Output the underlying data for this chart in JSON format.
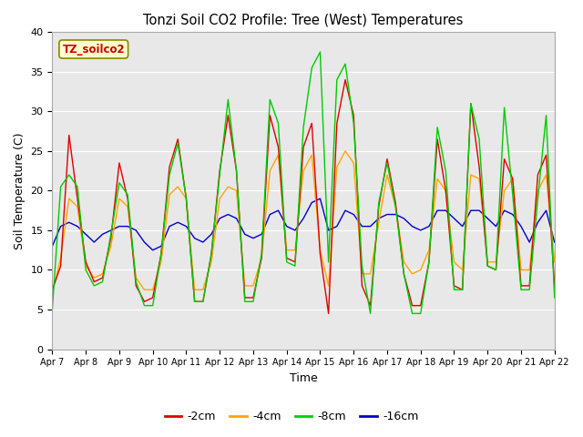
{
  "title": "Tonzi Soil CO2 Profile: Tree (West) Temperatures",
  "xlabel": "Time",
  "ylabel": "Soil Temperature (C)",
  "ylim": [
    0,
    40
  ],
  "xlim": [
    0,
    15
  ],
  "plot_bg_color": "#e8e8e8",
  "legend_label": "TZ_soilco2",
  "legend_bg": "#ffffcc",
  "legend_border": "#cc0000",
  "xtick_labels": [
    "Apr 7",
    "Apr 8",
    "Apr 9",
    "Apr 10",
    "Apr 11",
    "Apr 12",
    "Apr 13",
    "Apr 14",
    "Apr 15",
    "Apr 16",
    "Apr 17",
    "Apr 18",
    "Apr 19",
    "Apr 20",
    "Apr 21",
    "Apr 22"
  ],
  "ytick_labels": [
    0,
    5,
    10,
    15,
    20,
    25,
    30,
    35,
    40
  ],
  "series": {
    "-2cm": {
      "color": "#dd0000",
      "data_x": [
        0,
        0.25,
        0.5,
        0.75,
        1.0,
        1.25,
        1.5,
        1.75,
        2.0,
        2.25,
        2.5,
        2.75,
        3.0,
        3.25,
        3.5,
        3.75,
        4.0,
        4.25,
        4.5,
        4.75,
        5.0,
        5.25,
        5.5,
        5.75,
        6.0,
        6.25,
        6.5,
        6.75,
        7.0,
        7.25,
        7.5,
        7.75,
        8.0,
        8.25,
        8.5,
        8.75,
        9.0,
        9.25,
        9.5,
        9.75,
        10.0,
        10.25,
        10.5,
        10.75,
        11.0,
        11.25,
        11.5,
        11.75,
        12.0,
        12.25,
        12.5,
        12.75,
        13.0,
        13.25,
        13.5,
        13.75,
        14.0,
        14.25,
        14.5,
        14.75,
        15.0
      ],
      "data_y": [
        7.5,
        10.5,
        27.0,
        19.0,
        11.0,
        8.5,
        9.0,
        14.0,
        23.5,
        19.0,
        8.0,
        6.0,
        6.5,
        12.0,
        23.0,
        26.5,
        19.0,
        6.0,
        6.0,
        12.0,
        22.5,
        29.5,
        22.5,
        6.5,
        6.5,
        11.5,
        29.5,
        25.5,
        11.5,
        11.0,
        25.5,
        28.5,
        12.0,
        4.5,
        28.5,
        34.0,
        29.5,
        8.0,
        5.5,
        18.0,
        24.0,
        18.5,
        9.5,
        5.5,
        5.5,
        11.0,
        26.5,
        20.0,
        8.0,
        7.5,
        31.0,
        23.0,
        10.5,
        10.0,
        24.0,
        21.5,
        8.0,
        8.0,
        22.0,
        24.5,
        8.0
      ]
    },
    "-4cm": {
      "color": "#ffa500",
      "data_x": [
        0,
        0.25,
        0.5,
        0.75,
        1.0,
        1.25,
        1.5,
        1.75,
        2.0,
        2.25,
        2.5,
        2.75,
        3.0,
        3.25,
        3.5,
        3.75,
        4.0,
        4.25,
        4.5,
        4.75,
        5.0,
        5.25,
        5.5,
        5.75,
        6.0,
        6.25,
        6.5,
        6.75,
        7.0,
        7.25,
        7.5,
        7.75,
        8.0,
        8.25,
        8.5,
        8.75,
        9.0,
        9.25,
        9.5,
        9.75,
        10.0,
        10.25,
        10.5,
        10.75,
        11.0,
        11.25,
        11.5,
        11.75,
        12.0,
        12.25,
        12.5,
        12.75,
        13.0,
        13.25,
        13.5,
        13.75,
        14.0,
        14.25,
        14.5,
        14.75,
        15.0
      ],
      "data_y": [
        7.0,
        11.5,
        19.0,
        18.0,
        10.5,
        9.0,
        9.5,
        13.0,
        19.0,
        18.0,
        9.0,
        7.5,
        7.5,
        11.0,
        19.5,
        20.5,
        19.0,
        7.5,
        7.5,
        11.0,
        19.0,
        20.5,
        20.0,
        8.0,
        8.0,
        11.5,
        22.5,
        24.5,
        12.5,
        12.5,
        22.5,
        24.5,
        12.5,
        8.0,
        23.0,
        25.0,
        23.5,
        9.5,
        9.5,
        16.0,
        22.0,
        18.0,
        11.0,
        9.5,
        10.0,
        12.5,
        21.5,
        20.0,
        11.0,
        10.0,
        22.0,
        21.5,
        11.0,
        11.0,
        20.0,
        21.5,
        10.0,
        10.0,
        20.0,
        22.0,
        11.0
      ]
    },
    "-8cm": {
      "color": "#00cc00",
      "data_x": [
        0,
        0.25,
        0.5,
        0.75,
        1.0,
        1.25,
        1.5,
        1.75,
        2.0,
        2.25,
        2.5,
        2.75,
        3.0,
        3.25,
        3.5,
        3.75,
        4.0,
        4.25,
        4.5,
        4.75,
        5.0,
        5.25,
        5.5,
        5.75,
        6.0,
        6.25,
        6.5,
        6.75,
        7.0,
        7.25,
        7.5,
        7.75,
        8.0,
        8.25,
        8.5,
        8.75,
        9.0,
        9.25,
        9.5,
        9.75,
        10.0,
        10.25,
        10.5,
        10.75,
        11.0,
        11.25,
        11.5,
        11.75,
        12.0,
        12.25,
        12.5,
        12.75,
        13.0,
        13.25,
        13.5,
        13.75,
        14.0,
        14.25,
        14.5,
        14.75,
        15.0
      ],
      "data_y": [
        5.0,
        20.5,
        22.0,
        20.5,
        10.0,
        8.0,
        8.5,
        14.5,
        21.0,
        19.5,
        8.5,
        5.5,
        5.5,
        12.0,
        22.0,
        26.0,
        19.0,
        6.0,
        6.0,
        12.0,
        22.0,
        31.5,
        22.5,
        6.0,
        6.0,
        12.0,
        31.5,
        28.5,
        11.0,
        10.5,
        28.0,
        35.5,
        37.5,
        11.0,
        34.0,
        36.0,
        28.5,
        10.5,
        4.5,
        18.5,
        23.5,
        18.0,
        9.5,
        4.5,
        4.5,
        11.0,
        28.0,
        22.5,
        7.5,
        7.5,
        31.0,
        26.5,
        10.5,
        10.0,
        30.5,
        19.5,
        7.5,
        7.5,
        19.0,
        29.5,
        6.5
      ]
    },
    "-16cm": {
      "color": "#0000cc",
      "data_x": [
        0,
        0.25,
        0.5,
        0.75,
        1.0,
        1.25,
        1.5,
        1.75,
        2.0,
        2.25,
        2.5,
        2.75,
        3.0,
        3.25,
        3.5,
        3.75,
        4.0,
        4.25,
        4.5,
        4.75,
        5.0,
        5.25,
        5.5,
        5.75,
        6.0,
        6.25,
        6.5,
        6.75,
        7.0,
        7.25,
        7.5,
        7.75,
        8.0,
        8.25,
        8.5,
        8.75,
        9.0,
        9.25,
        9.5,
        9.75,
        10.0,
        10.25,
        10.5,
        10.75,
        11.0,
        11.25,
        11.5,
        11.75,
        12.0,
        12.25,
        12.5,
        12.75,
        13.0,
        13.25,
        13.5,
        13.75,
        14.0,
        14.25,
        14.5,
        14.75,
        15.0
      ],
      "data_y": [
        13.0,
        15.5,
        16.0,
        15.5,
        14.5,
        13.5,
        14.5,
        15.0,
        15.5,
        15.5,
        15.0,
        13.5,
        12.5,
        13.0,
        15.5,
        16.0,
        15.5,
        14.0,
        13.5,
        14.5,
        16.5,
        17.0,
        16.5,
        14.5,
        14.0,
        14.5,
        17.0,
        17.5,
        15.5,
        15.0,
        16.5,
        18.5,
        19.0,
        15.0,
        15.5,
        17.5,
        17.0,
        15.5,
        15.5,
        16.5,
        17.0,
        17.0,
        16.5,
        15.5,
        15.0,
        15.5,
        17.5,
        17.5,
        16.5,
        15.5,
        17.5,
        17.5,
        16.5,
        15.5,
        17.5,
        17.0,
        15.5,
        13.5,
        16.0,
        17.5,
        13.5
      ]
    }
  }
}
